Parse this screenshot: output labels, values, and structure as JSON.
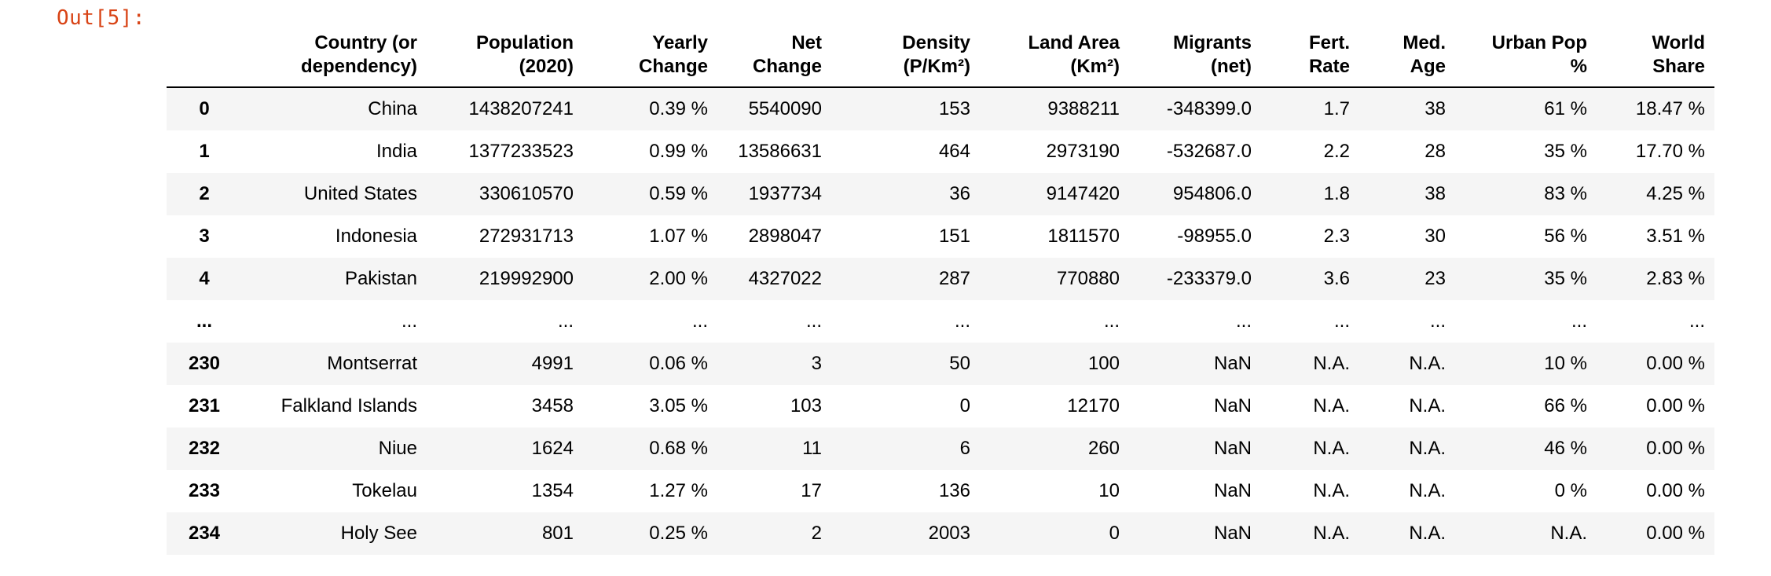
{
  "cell": {
    "prompt": "Out[5]:"
  },
  "colors": {
    "prompt": "#D84315",
    "row_stripe": "#F5F5F5",
    "header_rule": "#000000"
  },
  "table": {
    "columns": [
      "",
      "Country (or\ndependency)",
      "Population\n(2020)",
      "Yearly\nChange",
      "Net\nChange",
      "Density\n(P/Km²)",
      "Land Area\n(Km²)",
      "Migrants\n(net)",
      "Fert.\nRate",
      "Med.\nAge",
      "Urban Pop\n%",
      "World\nShare"
    ],
    "rows": [
      [
        "0",
        "China",
        "1438207241",
        "0.39 %",
        "5540090",
        "153",
        "9388211",
        "-348399.0",
        "1.7",
        "38",
        "61 %",
        "18.47 %"
      ],
      [
        "1",
        "India",
        "1377233523",
        "0.99 %",
        "13586631",
        "464",
        "2973190",
        "-532687.0",
        "2.2",
        "28",
        "35 %",
        "17.70 %"
      ],
      [
        "2",
        "United States",
        "330610570",
        "0.59 %",
        "1937734",
        "36",
        "9147420",
        "954806.0",
        "1.8",
        "38",
        "83 %",
        "4.25 %"
      ],
      [
        "3",
        "Indonesia",
        "272931713",
        "1.07 %",
        "2898047",
        "151",
        "1811570",
        "-98955.0",
        "2.3",
        "30",
        "56 %",
        "3.51 %"
      ],
      [
        "4",
        "Pakistan",
        "219992900",
        "2.00 %",
        "4327022",
        "287",
        "770880",
        "-233379.0",
        "3.6",
        "23",
        "35 %",
        "2.83 %"
      ],
      [
        "...",
        "...",
        "...",
        "...",
        "...",
        "...",
        "...",
        "...",
        "...",
        "...",
        "...",
        "..."
      ],
      [
        "230",
        "Montserrat",
        "4991",
        "0.06 %",
        "3",
        "50",
        "100",
        "NaN",
        "N.A.",
        "N.A.",
        "10 %",
        "0.00 %"
      ],
      [
        "231",
        "Falkland Islands",
        "3458",
        "3.05 %",
        "103",
        "0",
        "12170",
        "NaN",
        "N.A.",
        "N.A.",
        "66 %",
        "0.00 %"
      ],
      [
        "232",
        "Niue",
        "1624",
        "0.68 %",
        "11",
        "6",
        "260",
        "NaN",
        "N.A.",
        "N.A.",
        "46 %",
        "0.00 %"
      ],
      [
        "233",
        "Tokelau",
        "1354",
        "1.27 %",
        "17",
        "136",
        "10",
        "NaN",
        "N.A.",
        "N.A.",
        "0 %",
        "0.00 %"
      ],
      [
        "234",
        "Holy See",
        "801",
        "0.25 %",
        "2",
        "2003",
        "0",
        "NaN",
        "N.A.",
        "N.A.",
        "N.A.",
        "0.00 %"
      ]
    ]
  }
}
